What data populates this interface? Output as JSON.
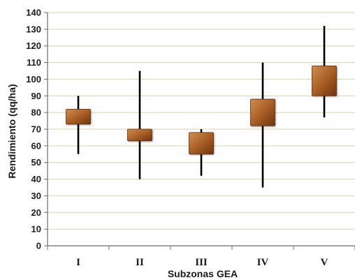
{
  "chart_data": {
    "type": "candlestick",
    "categories": [
      "I",
      "II",
      "III",
      "IV",
      "V"
    ],
    "series": [
      {
        "low": [
          55,
          40,
          42,
          35,
          77
        ],
        "high": [
          90,
          105,
          70,
          110,
          132
        ],
        "box_low": [
          73,
          63,
          55,
          72,
          90
        ],
        "box_high": [
          82,
          70,
          68,
          88,
          108
        ]
      }
    ],
    "xlabel": "Subzonas GEA",
    "ylabel": "Rendimiento (qq/ha)",
    "ylim": [
      0,
      140
    ],
    "ytick_step": 10,
    "grid": true,
    "colors": {
      "box_light": "#c8864a",
      "box_dark": "#7a3d12",
      "whisker": "#000000",
      "grid": "#d9d2a8"
    }
  }
}
